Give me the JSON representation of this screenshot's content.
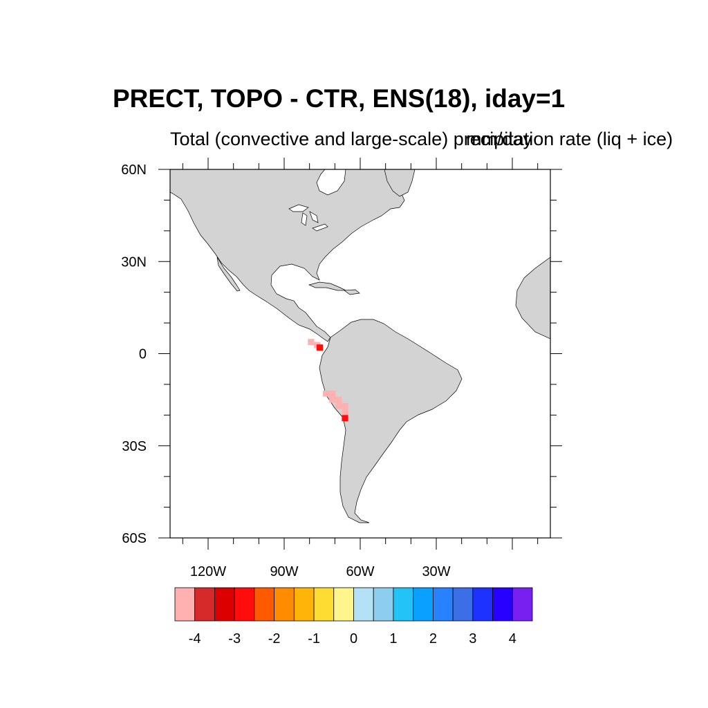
{
  "figure": {
    "title": "PRECT, TOPO - CTR, ENS(18), iday=1",
    "subtitle_left": "Total (convective and large-scale) precipitation rate (liq + ice)",
    "subtitle_right": "mm/day"
  },
  "map": {
    "projection": "cylindrical-equidistant",
    "lon_range": [
      -135,
      15
    ],
    "lat_range": [
      -60,
      60
    ],
    "lat_ticks": [
      {
        "value": 60,
        "label": "60N"
      },
      {
        "value": 30,
        "label": "30N"
      },
      {
        "value": 0,
        "label": "0"
      },
      {
        "value": -30,
        "label": "30S"
      },
      {
        "value": -60,
        "label": "60S"
      }
    ],
    "lon_ticks": [
      {
        "value": -120,
        "label": "120W"
      },
      {
        "value": -90,
        "label": "90W"
      },
      {
        "value": -60,
        "label": "60W"
      },
      {
        "value": -30,
        "label": "30W"
      }
    ],
    "land_color": "#d3d3d3",
    "coast_color": "#000000"
  },
  "chart_data": {
    "type": "heatmap",
    "variable": "PRECT",
    "units": "mm/day",
    "cells": [
      {
        "lat": 3.8,
        "lon": -79.4,
        "value": -4.2
      },
      {
        "lat": 2.8,
        "lon": -77.0,
        "value": -4.2
      },
      {
        "lat": 2.0,
        "lon": -76.0,
        "value": -3.0
      },
      {
        "lat": -13.0,
        "lon": -73.5,
        "value": -4.2
      },
      {
        "lat": -13.0,
        "lon": -71.0,
        "value": -4.2
      },
      {
        "lat": -15.0,
        "lon": -71.0,
        "value": -4.2
      },
      {
        "lat": -15.0,
        "lon": -68.5,
        "value": -4.2
      },
      {
        "lat": -17.0,
        "lon": -68.5,
        "value": -4.2
      },
      {
        "lat": -17.0,
        "lon": -66.0,
        "value": -4.2
      },
      {
        "lat": -19.0,
        "lon": -66.0,
        "value": -4.2
      },
      {
        "lat": -21.0,
        "lon": -66.0,
        "value": -3.0
      }
    ]
  },
  "colorbar": {
    "colors": [
      "#ffb0b0",
      "#d62a2a",
      "#dc0000",
      "#ff0c0c",
      "#ff5a00",
      "#ff8c00",
      "#ffb40a",
      "#ffdc32",
      "#fff58c",
      "#b4e1f5",
      "#8ccdf0",
      "#23c3f8",
      "#0aa0ff",
      "#2882ff",
      "#3c6ee6",
      "#1e32ff",
      "#2800ff",
      "#7820f0"
    ],
    "labels": [
      "-4",
      "-3",
      "-2",
      "-1",
      "0",
      "1",
      "2",
      "3",
      "4"
    ]
  }
}
